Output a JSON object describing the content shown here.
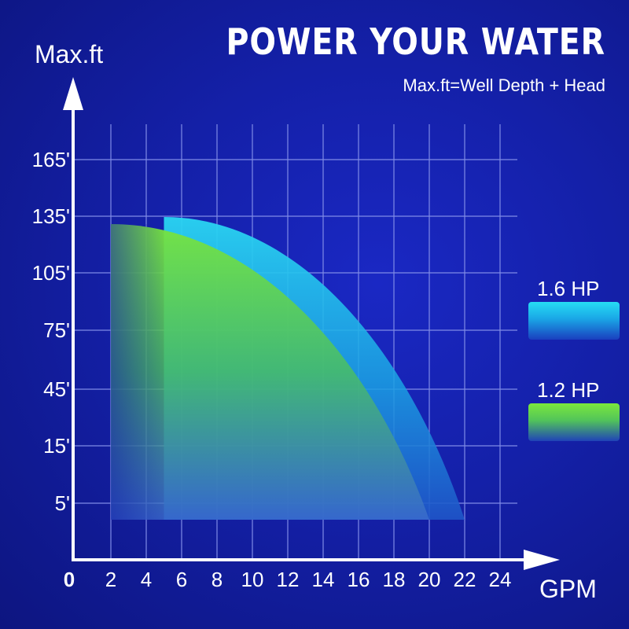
{
  "header": {
    "title": "POWER YOUR WATER",
    "subtitle": "Max.ft=Well Depth + Head"
  },
  "legend": [
    {
      "label": "1.6 HP",
      "color": "#26ddf4"
    },
    {
      "label": "1.2 HP",
      "color": "#7be83c"
    }
  ],
  "colors": {
    "background": "#1420a8",
    "grid": "#7f8be6",
    "axis": "#ffffff",
    "series_16hp": "#26ddf4",
    "series_12hp": "#7be83c"
  },
  "chart_data": {
    "type": "area",
    "xlabel": "GPM",
    "ylabel": "Max.ft",
    "x_origin_label": "0",
    "xticks": [
      "2",
      "4",
      "6",
      "8",
      "10",
      "12",
      "14",
      "16",
      "18",
      "20",
      "22",
      "24"
    ],
    "yticks": [
      "5'",
      "15'",
      "45'",
      "75'",
      "105'",
      "135'",
      "165'"
    ],
    "grid": true,
    "legend_position": "right",
    "series": [
      {
        "name": "1.6 HP",
        "x_min": 5,
        "x_max": 22,
        "max_ft": 135
      },
      {
        "name": 1.2,
        "x_min": 2,
        "x_max": 20,
        "max_ft": 130
      }
    ]
  }
}
